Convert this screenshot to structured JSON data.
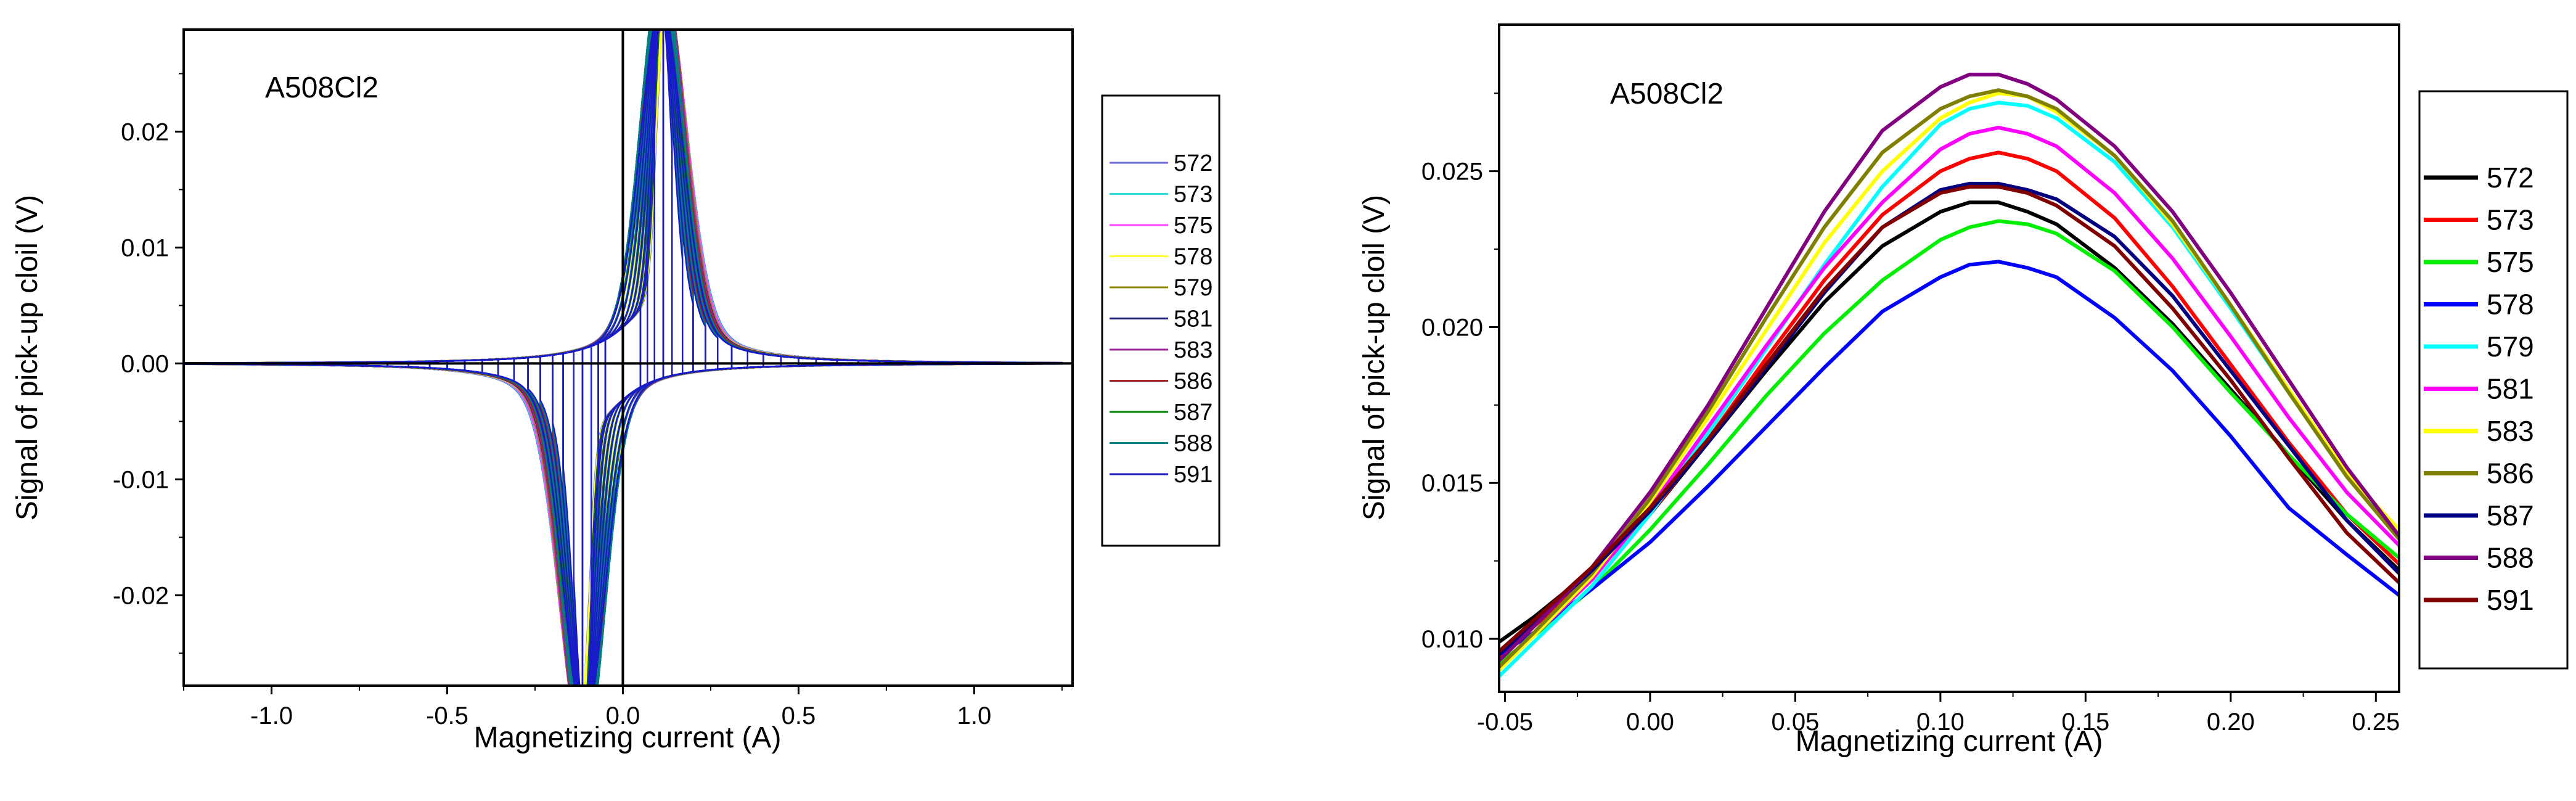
{
  "chart_data": [
    {
      "type": "line",
      "title": "A508Cl2",
      "xlabel": "Magnetizing current  (A)",
      "ylabel": "Signal of pick-up cloil  (V)",
      "xlim": [
        -1.25,
        1.28
      ],
      "ylim": [
        -0.0278,
        0.0288
      ],
      "xticks": [
        -1.0,
        -0.5,
        0.0,
        0.5,
        1.0
      ],
      "xtick_labels": [
        "-1.0",
        "-0.5",
        "0.0",
        "0.5",
        "1.0"
      ],
      "yticks": [
        -0.02,
        -0.01,
        0.0,
        0.01,
        0.02
      ],
      "ytick_labels": [
        "-0.02",
        "-0.01",
        "0.00",
        "0.01",
        "0.02"
      ],
      "grid": false,
      "legend_position": "right",
      "colors": [
        "#6b6bd6",
        "#33dddd",
        "#ff44ff",
        "#ffff33",
        "#888800",
        "#1a1a80",
        "#a020a0",
        "#a02020",
        "#008000",
        "#008080",
        "#1a1acc"
      ],
      "loop_peak_currents": [
        1.25,
        1.17,
        1.09,
        1.01,
        0.94,
        0.87,
        0.8,
        0.73,
        0.67,
        0.61,
        0.55,
        0.5,
        0.45,
        0.4,
        0.355,
        0.31,
        0.27,
        0.235,
        0.2,
        0.17,
        0.14,
        0.115,
        0.09,
        0.07,
        0.05
      ],
      "series": [
        {
          "name": "572",
          "peak_amplitude": 0.0245
        },
        {
          "name": "573",
          "peak_amplitude": 0.0256
        },
        {
          "name": "575",
          "peak_amplitude": 0.0263
        },
        {
          "name": "578",
          "peak_amplitude": 0.0228
        },
        {
          "name": "579",
          "peak_amplitude": 0.0272
        },
        {
          "name": "581",
          "peak_amplitude": 0.0264
        },
        {
          "name": "583",
          "peak_amplitude": 0.0279
        },
        {
          "name": "586",
          "peak_amplitude": 0.0268
        },
        {
          "name": "587",
          "peak_amplitude": 0.0246
        },
        {
          "name": "588",
          "peak_amplitude": 0.0283
        },
        {
          "name": "591",
          "peak_amplitude": 0.025
        }
      ]
    },
    {
      "type": "line",
      "title": "A508Cl2",
      "xlabel": "Magnetizing current  (A)",
      "ylabel": "Signal of pick-up cloil  (V)",
      "xlim": [
        -0.052,
        0.258
      ],
      "ylim": [
        0.0083,
        0.0297
      ],
      "xticks": [
        -0.05,
        0.0,
        0.05,
        0.1,
        0.15,
        0.2,
        0.25
      ],
      "xtick_labels": [
        "-0.05",
        "0.00",
        "0.05",
        "0.10",
        "0.15",
        "0.20",
        "0.25"
      ],
      "yticks": [
        0.01,
        0.015,
        0.02,
        0.025
      ],
      "ytick_labels": [
        "0.010",
        "0.015",
        "0.020",
        "0.025"
      ],
      "grid": false,
      "legend_position": "right",
      "x": [
        -0.052,
        -0.04,
        -0.02,
        0.0,
        0.02,
        0.04,
        0.06,
        0.08,
        0.1,
        0.11,
        0.12,
        0.13,
        0.14,
        0.16,
        0.18,
        0.2,
        0.22,
        0.24,
        0.258
      ],
      "series": [
        {
          "name": "572",
          "color": "#000000",
          "values": [
            0.0099,
            0.0107,
            0.0122,
            0.014,
            0.0163,
            0.0186,
            0.0208,
            0.0226,
            0.0237,
            0.024,
            0.024,
            0.0237,
            0.0233,
            0.0219,
            0.0201,
            0.018,
            0.0159,
            0.0138,
            0.0122
          ]
        },
        {
          "name": "573",
          "color": "#ff0000",
          "values": [
            0.0094,
            0.0104,
            0.012,
            0.014,
            0.0164,
            0.019,
            0.0215,
            0.0236,
            0.025,
            0.0254,
            0.0256,
            0.0254,
            0.025,
            0.0235,
            0.0213,
            0.0188,
            0.0163,
            0.014,
            0.0124
          ]
        },
        {
          "name": "575",
          "color": "#00ee00",
          "values": [
            0.0092,
            0.0101,
            0.0116,
            0.0135,
            0.0156,
            0.0178,
            0.0198,
            0.0215,
            0.0228,
            0.0232,
            0.0234,
            0.0233,
            0.023,
            0.0218,
            0.02,
            0.0179,
            0.0159,
            0.014,
            0.0126
          ]
        },
        {
          "name": "578",
          "color": "#0000ff",
          "values": [
            0.0095,
            0.0102,
            0.0116,
            0.0131,
            0.0149,
            0.0168,
            0.0187,
            0.0205,
            0.0216,
            0.022,
            0.0221,
            0.0219,
            0.0216,
            0.0203,
            0.0186,
            0.0165,
            0.0142,
            0.0127,
            0.0114
          ]
        },
        {
          "name": "579",
          "color": "#00ffff",
          "values": [
            0.0088,
            0.0099,
            0.0117,
            0.014,
            0.0166,
            0.0193,
            0.022,
            0.0245,
            0.0265,
            0.027,
            0.0272,
            0.0271,
            0.0267,
            0.0253,
            0.0232,
            0.0206,
            0.0179,
            0.0152,
            0.0135
          ]
        },
        {
          "name": "581",
          "color": "#ff00ff",
          "values": [
            0.0091,
            0.0101,
            0.0119,
            0.0142,
            0.0168,
            0.0194,
            0.0219,
            0.024,
            0.0257,
            0.0262,
            0.0264,
            0.0262,
            0.0258,
            0.0243,
            0.0222,
            0.0197,
            0.0171,
            0.0147,
            0.013
          ]
        },
        {
          "name": "583",
          "color": "#ffff00",
          "values": [
            0.009,
            0.0101,
            0.012,
            0.0144,
            0.0171,
            0.0199,
            0.0227,
            0.025,
            0.0267,
            0.0272,
            0.0275,
            0.0274,
            0.0269,
            0.0255,
            0.0233,
            0.0207,
            0.018,
            0.0153,
            0.0135
          ]
        },
        {
          "name": "586",
          "color": "#808000",
          "values": [
            0.0091,
            0.0102,
            0.0121,
            0.0145,
            0.0173,
            0.0203,
            0.0232,
            0.0256,
            0.027,
            0.0274,
            0.0276,
            0.0274,
            0.027,
            0.0255,
            0.0234,
            0.0207,
            0.0179,
            0.0152,
            0.0132
          ]
        },
        {
          "name": "587",
          "color": "#000080",
          "values": [
            0.0095,
            0.0105,
            0.0122,
            0.0141,
            0.0163,
            0.0187,
            0.0211,
            0.0232,
            0.0244,
            0.0246,
            0.0246,
            0.0244,
            0.0241,
            0.0229,
            0.021,
            0.0186,
            0.0162,
            0.0138,
            0.0121
          ]
        },
        {
          "name": "588",
          "color": "#800080",
          "values": [
            0.0093,
            0.0104,
            0.0123,
            0.0147,
            0.0175,
            0.0206,
            0.0237,
            0.0263,
            0.0277,
            0.0281,
            0.0281,
            0.0278,
            0.0273,
            0.0258,
            0.0237,
            0.0211,
            0.0183,
            0.0155,
            0.0133
          ]
        },
        {
          "name": "591",
          "color": "#800000",
          "values": [
            0.0096,
            0.0106,
            0.0123,
            0.0142,
            0.0164,
            0.0188,
            0.0212,
            0.0232,
            0.0243,
            0.0245,
            0.0245,
            0.0243,
            0.0239,
            0.0226,
            0.0206,
            0.0183,
            0.0158,
            0.0134,
            0.0118
          ]
        }
      ]
    }
  ]
}
